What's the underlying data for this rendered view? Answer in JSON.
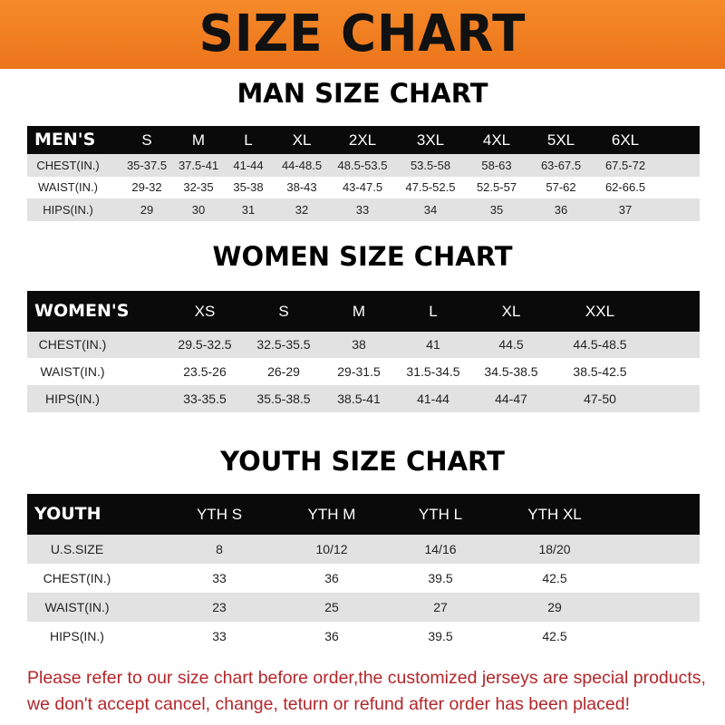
{
  "banner": {
    "title": "SIZE CHART",
    "color": "#ef7b1f"
  },
  "men": {
    "title": "MAN SIZE CHART",
    "header": [
      "MEN'S",
      "S",
      "M",
      "L",
      "XL",
      "2XL",
      "3XL",
      "4XL",
      "5XL",
      "6XL"
    ],
    "rows": [
      [
        "CHEST(IN.)",
        "35-37.5",
        "37.5-41",
        "41-44",
        "44-48.5",
        "48.5-53.5",
        "53.5-58",
        "58-63",
        "63-67.5",
        "67.5-72"
      ],
      [
        "WAIST(IN.)",
        "29-32",
        "32-35",
        "35-38",
        "38-43",
        "43-47.5",
        "47.5-52.5",
        "52.5-57",
        "57-62",
        "62-66.5"
      ],
      [
        "HIPS(IN.)",
        "29",
        "30",
        "31",
        "32",
        "33",
        "34",
        "35",
        "36",
        "37"
      ]
    ]
  },
  "women": {
    "title": "WOMEN SIZE CHART",
    "header": [
      "WOMEN'S",
      "XS",
      "S",
      "M",
      "L",
      "XL",
      "XXL"
    ],
    "rows": [
      [
        "CHEST(IN.)",
        "29.5-32.5",
        "32.5-35.5",
        "38",
        "41",
        "44.5",
        "44.5-48.5"
      ],
      [
        "WAIST(IN.)",
        "23.5-26",
        "26-29",
        "29-31.5",
        "31.5-34.5",
        "34.5-38.5",
        "38.5-42.5"
      ],
      [
        "HIPS(IN.)",
        "33-35.5",
        "35.5-38.5",
        "38.5-41",
        "41-44",
        "44-47",
        "47-50"
      ]
    ]
  },
  "youth": {
    "title": "YOUTH SIZE CHART",
    "header": [
      "YOUTH",
      "YTH S",
      "YTH M",
      "YTH L",
      "YTH XL"
    ],
    "rows": [
      [
        "U.S.SIZE",
        "8",
        "10/12",
        "14/16",
        "18/20"
      ],
      [
        "CHEST(IN.)",
        "33",
        "36",
        "39.5",
        "42.5"
      ],
      [
        "WAIST(IN.)",
        "23",
        "25",
        "27",
        "29"
      ],
      [
        "HIPS(IN.)",
        "33",
        "36",
        "39.5",
        "42.5"
      ]
    ]
  },
  "footer": {
    "line1": "Please refer to our size chart before order,the customized jerseys are special products,",
    "line2": "we don't accept cancel, change, teturn or refund after order has been placed!",
    "color": "#b3262a"
  }
}
